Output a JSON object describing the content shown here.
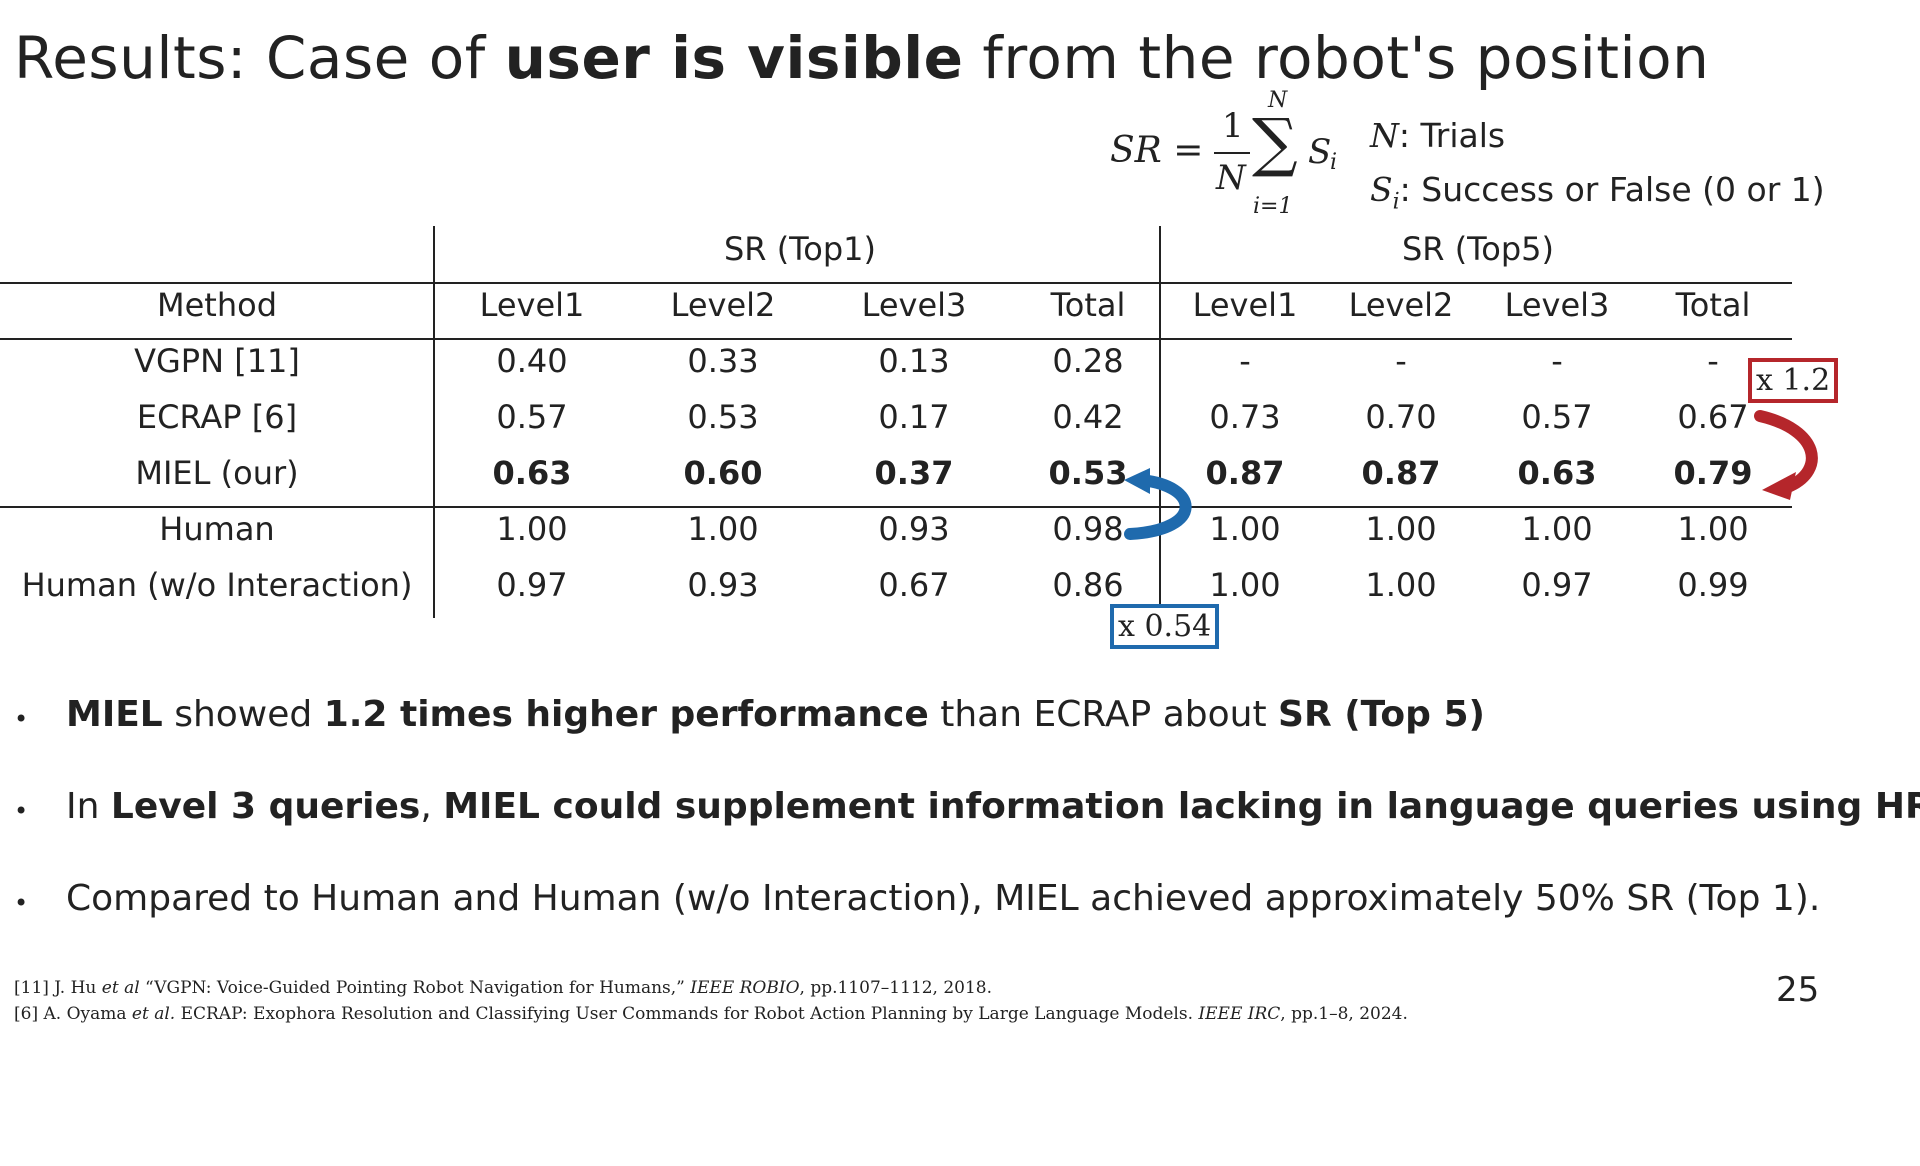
{
  "slide": {
    "title_prefix": "Results: Case of ",
    "title_bold": "user is visible",
    "title_suffix": " from the robot's position",
    "page_number": "25"
  },
  "formula": {
    "lhs": "SR =",
    "frac_num": "1",
    "frac_den": "N",
    "sum_top": "N",
    "sum_bottom": "i=1",
    "sum_term": "S",
    "sum_term_sub": "i",
    "legend": [
      {
        "symbol": "N",
        "sub": "",
        "text": ": Trials"
      },
      {
        "symbol": "S",
        "sub": "i",
        "text": ": Success or False (0 or 1)"
      }
    ]
  },
  "table": {
    "group_headers": [
      "SR (Top1)",
      "SR (Top5)"
    ],
    "columns": [
      "Method",
      "Level1",
      "Level2",
      "Level3",
      "Total",
      "Level1",
      "Level2",
      "Level3",
      "Total"
    ],
    "rows": [
      {
        "method": "VGPN [11]",
        "values": [
          "0.40",
          "0.33",
          "0.13",
          "0.28",
          "-",
          "-",
          "-",
          "-"
        ],
        "bold": false
      },
      {
        "method": "ECRAP [6]",
        "values": [
          "0.57",
          "0.53",
          "0.17",
          "0.42",
          "0.73",
          "0.70",
          "0.57",
          "0.67"
        ],
        "bold": false
      },
      {
        "method": "MIEL (our)",
        "values": [
          "0.63",
          "0.60",
          "0.37",
          "0.53",
          "0.87",
          "0.87",
          "0.63",
          "0.79"
        ],
        "bold": true
      },
      {
        "method": "Human",
        "values": [
          "1.00",
          "1.00",
          "0.93",
          "0.98",
          "1.00",
          "1.00",
          "1.00",
          "1.00"
        ],
        "bold": false
      },
      {
        "method": "Human (w/o Interaction)",
        "values": [
          "0.97",
          "0.93",
          "0.67",
          "0.86",
          "1.00",
          "1.00",
          "0.97",
          "0.99"
        ],
        "bold": false
      }
    ]
  },
  "callouts": {
    "red_label": "x 1.2",
    "red_color": "#b5262b",
    "blue_label": "x 0.54",
    "blue_color": "#1f6aad"
  },
  "bullets": [
    {
      "parts": [
        {
          "t": "MIEL",
          "b": true
        },
        {
          "t": " showed ",
          "b": false
        },
        {
          "t": "1.2 times higher performance",
          "b": true
        },
        {
          "t": " than ECRAP about ",
          "b": false
        },
        {
          "t": "SR (Top 5)",
          "b": true
        }
      ]
    },
    {
      "parts": [
        {
          "t": "In ",
          "b": false
        },
        {
          "t": "Level 3 queries",
          "b": true
        },
        {
          "t": ", ",
          "b": false
        },
        {
          "t": "MIEL could supplement information lacking in language queries using HRI",
          "b": true
        }
      ]
    },
    {
      "parts": [
        {
          "t": "Compared to Human and Human (w/o Interaction), MIEL achieved approximately 50% SR (Top 1).",
          "b": false
        }
      ]
    }
  ],
  "references": [
    {
      "parts": [
        {
          "t": "[11] J. Hu ",
          "i": false
        },
        {
          "t": "et al",
          "i": true
        },
        {
          "t": " “VGPN: Voice-Guided Pointing Robot Navigation for Humans,” ",
          "i": false
        },
        {
          "t": "IEEE ROBIO",
          "i": true
        },
        {
          "t": ", pp.1107–1112, 2018.",
          "i": false
        }
      ]
    },
    {
      "parts": [
        {
          "t": "[6] A. Oyama ",
          "i": false
        },
        {
          "t": "et al.",
          "i": true
        },
        {
          "t": " ECRAP: Exophora Resolution and Classifying User Commands for Robot Action Planning by Large Language Models. ",
          "i": false
        },
        {
          "t": "IEEE IRC",
          "i": true
        },
        {
          "t": ", pp.1–8, 2024.",
          "i": false
        }
      ]
    }
  ]
}
